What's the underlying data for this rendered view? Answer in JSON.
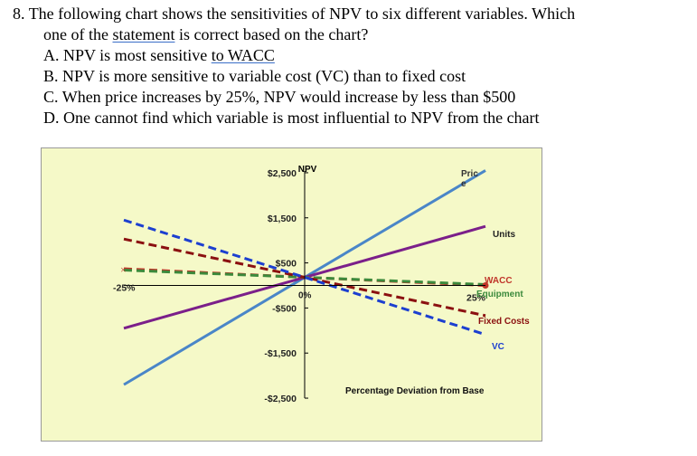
{
  "question": {
    "number": "8.",
    "line1": "The following chart shows the sensitivities of NPV to six different variables. Which",
    "line2_pre": "one of the ",
    "line2_link": "statement",
    "line2_post": " is correct based on the chart?",
    "options": [
      {
        "letter": "A.",
        "pre": "NPV is most sensitive ",
        "link": "to  WACC",
        "post": ""
      },
      {
        "letter": "B.",
        "pre": "NPV is more sensitive to variable cost (VC) than to fixed cost",
        "link": "",
        "post": ""
      },
      {
        "letter": "C.",
        "pre": "When price increases by 25%, NPV would increase by less than $500",
        "link": "",
        "post": ""
      },
      {
        "letter": "D.",
        "pre": "One cannot find which variable is most influential to NPV from the chart",
        "link": "",
        "post": ""
      }
    ]
  },
  "chart_data": {
    "type": "line",
    "title": "",
    "ylabel": "NPV",
    "xlabel": "Percentage Deviation from Base",
    "x_tick_labels": {
      "left": "-25%",
      "zero": "0%",
      "right": "25%"
    },
    "x": [
      -25,
      0,
      25
    ],
    "ylim": [
      -2800,
      2900
    ],
    "y_ticks": [
      2500,
      1500,
      500,
      -500,
      -1500,
      -2500
    ],
    "y_tick_labels": [
      "$2,500",
      "$1,500",
      "$500",
      "-$500",
      "-$1,500",
      "-$2,500"
    ],
    "series": [
      {
        "name": "Price",
        "label_lines": [
          "Pric",
          "e"
        ],
        "color": "#4a86c8",
        "dash": "solid",
        "values": [
          -2200,
          180,
          2550
        ]
      },
      {
        "name": "Units",
        "label_lines": [
          "Units"
        ],
        "color": "#7b1f8a",
        "dash": "solid",
        "values": [
          -950,
          180,
          1310
        ]
      },
      {
        "name": "WACC",
        "label_lines": [
          "WACC"
        ],
        "color": "#c0352a",
        "dash": "dashed",
        "values": [
          370,
          180,
          0
        ]
      },
      {
        "name": "Equipment",
        "label_lines": [
          "Equipment"
        ],
        "color": "#3c8a3c",
        "dash": "dashed",
        "values": [
          340,
          180,
          20
        ]
      },
      {
        "name": "Fixed Costs",
        "label_lines": [
          "Fixed Costs"
        ],
        "color": "#8b1010",
        "dash": "dashed",
        "values": [
          1030,
          180,
          -670
        ]
      },
      {
        "name": "VC",
        "label_lines": [
          "VC"
        ],
        "color": "#1c3fd0",
        "dash": "dashed",
        "values": [
          1450,
          180,
          -1090
        ]
      }
    ]
  },
  "colors": {
    "plot_background": "#f5f9c8",
    "axis": "#000000",
    "label_text": "#222222"
  }
}
